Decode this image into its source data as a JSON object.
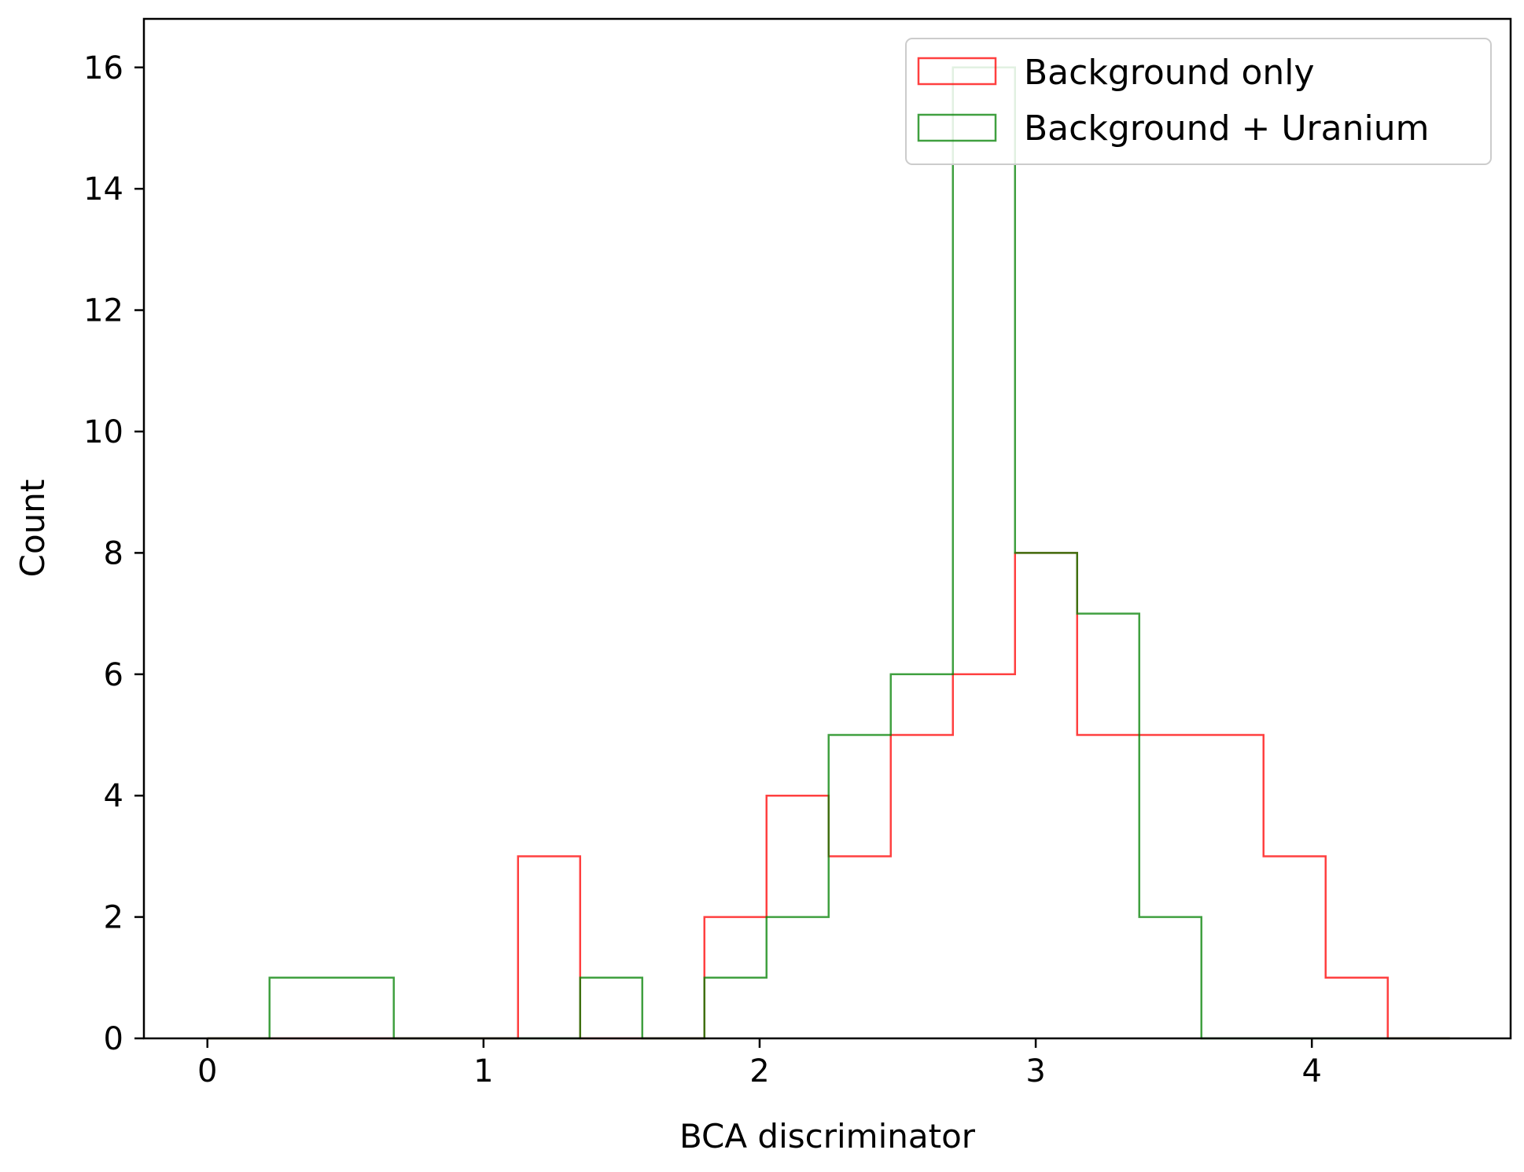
{
  "chart_data": {
    "type": "histogram",
    "xlabel": "BCA discriminator",
    "ylabel": "Count",
    "xlim": [
      -0.23,
      4.72
    ],
    "ylim": [
      0,
      16.8
    ],
    "xticks": [
      0,
      1,
      2,
      3,
      4
    ],
    "yticks": [
      0,
      2,
      4,
      6,
      8,
      10,
      12,
      14,
      16
    ],
    "legend_position": "top-right",
    "grid": false,
    "bin_edges": [
      0.0,
      0.225,
      0.45,
      0.675,
      0.9,
      1.125,
      1.35,
      1.575,
      1.8,
      2.025,
      2.25,
      2.475,
      2.7,
      2.925,
      3.15,
      3.375,
      3.6,
      3.825,
      4.05,
      4.275,
      4.5
    ],
    "series": [
      {
        "name": "Background only",
        "color": "#ff0000",
        "counts": [
          0,
          0,
          0,
          0,
          0,
          3,
          0,
          0,
          2,
          4,
          3,
          5,
          6,
          8,
          5,
          5,
          5,
          3,
          1,
          0
        ]
      },
      {
        "name": "Background + Uranium",
        "color": "#008000",
        "counts": [
          0,
          1,
          1,
          0,
          0,
          0,
          1,
          0,
          1,
          2,
          5,
          6,
          16,
          8,
          7,
          2,
          0,
          0,
          0,
          0
        ]
      }
    ]
  }
}
